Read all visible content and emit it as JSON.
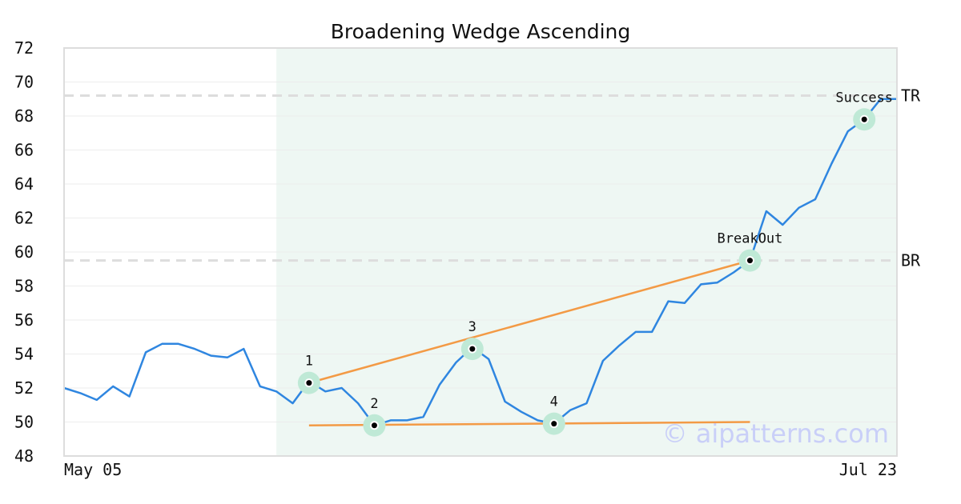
{
  "chart_data": {
    "type": "line",
    "title": "Broadening Wedge Ascending",
    "watermark": "© aipatterns.com",
    "x_tick_labels": [
      "May 05",
      "Jul 23"
    ],
    "ylim": [
      48,
      72
    ],
    "y_ticks": [
      "48",
      "50",
      "52",
      "54",
      "56",
      "58",
      "60",
      "62",
      "64",
      "66",
      "68",
      "70",
      "72"
    ],
    "grid": "horizontal",
    "series": [
      {
        "color": "#2f86e0",
        "values": [
          52.0,
          51.7,
          51.3,
          52.1,
          51.5,
          54.1,
          54.6,
          54.6,
          54.3,
          53.9,
          53.8,
          54.3,
          52.1,
          51.8,
          51.1,
          52.4,
          51.8,
          52.0,
          51.1,
          49.8,
          50.1,
          50.1,
          50.3,
          52.2,
          53.5,
          54.4,
          53.7,
          51.2,
          50.6,
          50.1,
          49.9,
          50.7,
          51.1,
          53.6,
          54.5,
          55.3,
          55.3,
          57.1,
          57.0,
          58.1,
          58.2,
          58.8,
          59.5,
          62.4,
          61.6,
          62.6,
          63.1,
          65.2,
          67.1,
          67.8,
          69.0,
          69.0
        ]
      }
    ],
    "highlight_range": {
      "start_index": 13,
      "end_index": 51,
      "color": "#eef7f3"
    },
    "reference_lines": [
      {
        "label": "TR",
        "value": 69.2,
        "color": "#dddddd"
      },
      {
        "label": "BR",
        "value": 59.5,
        "color": "#dddddd"
      }
    ],
    "trend_lines": [
      {
        "color": "#f39a45",
        "from": {
          "index": 15,
          "value": 52.3
        },
        "to": {
          "index": 42,
          "value": 59.5
        }
      },
      {
        "color": "#f39a45",
        "from": {
          "index": 15,
          "value": 49.8
        },
        "to": {
          "index": 42,
          "value": 50.0
        }
      }
    ],
    "annotations": [
      {
        "label": "1",
        "index": 15,
        "value": 52.3,
        "text_position": "above"
      },
      {
        "label": "2",
        "index": 19,
        "value": 49.8,
        "text_position": "above"
      },
      {
        "label": "3",
        "index": 25,
        "value": 54.3,
        "text_position": "above"
      },
      {
        "label": "4",
        "index": 30,
        "value": 49.9,
        "text_position": "above"
      },
      {
        "label": "BreakOut",
        "index": 42,
        "value": 59.5,
        "text_position": "above"
      },
      {
        "label": "Success",
        "index": 49,
        "value": 67.8,
        "text_position": "above"
      }
    ],
    "marker_color": "#bfe9d6"
  }
}
